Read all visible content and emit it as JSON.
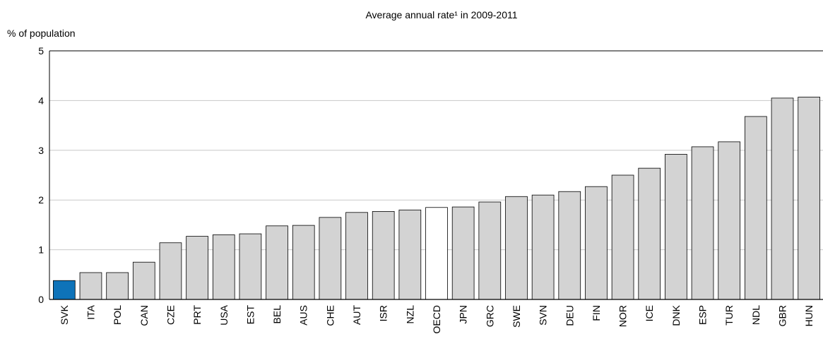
{
  "chart_data": {
    "type": "bar",
    "title": "Average annual rate¹ in 2009-2011",
    "ylabel": "% of population",
    "xlabel": "",
    "ylim": [
      0,
      5
    ],
    "yticks": [
      0,
      1,
      2,
      3,
      4,
      5
    ],
    "grid": true,
    "categories": [
      "SVK",
      "ITA",
      "POL",
      "CAN",
      "CZE",
      "PRT",
      "USA",
      "EST",
      "BEL",
      "AUS",
      "CHE",
      "AUT",
      "ISR",
      "NZL",
      "OECD",
      "JPN",
      "GRC",
      "SWE",
      "SVN",
      "DEU",
      "FIN",
      "NOR",
      "ICE",
      "DNK",
      "ESP",
      "TUR",
      "NDL",
      "GBR",
      "HUN"
    ],
    "values": [
      0.38,
      0.54,
      0.54,
      0.75,
      1.14,
      1.27,
      1.3,
      1.32,
      1.48,
      1.49,
      1.65,
      1.75,
      1.77,
      1.8,
      1.85,
      1.86,
      1.96,
      2.07,
      2.1,
      2.17,
      2.27,
      2.5,
      2.64,
      2.92,
      3.07,
      3.17,
      3.68,
      4.05,
      4.07
    ],
    "colors": {
      "default": "#d3d3d3",
      "SVK": "#0e73b9",
      "OECD": "#ffffff",
      "outline": "#000000",
      "grid": "#c8c8c8"
    }
  }
}
